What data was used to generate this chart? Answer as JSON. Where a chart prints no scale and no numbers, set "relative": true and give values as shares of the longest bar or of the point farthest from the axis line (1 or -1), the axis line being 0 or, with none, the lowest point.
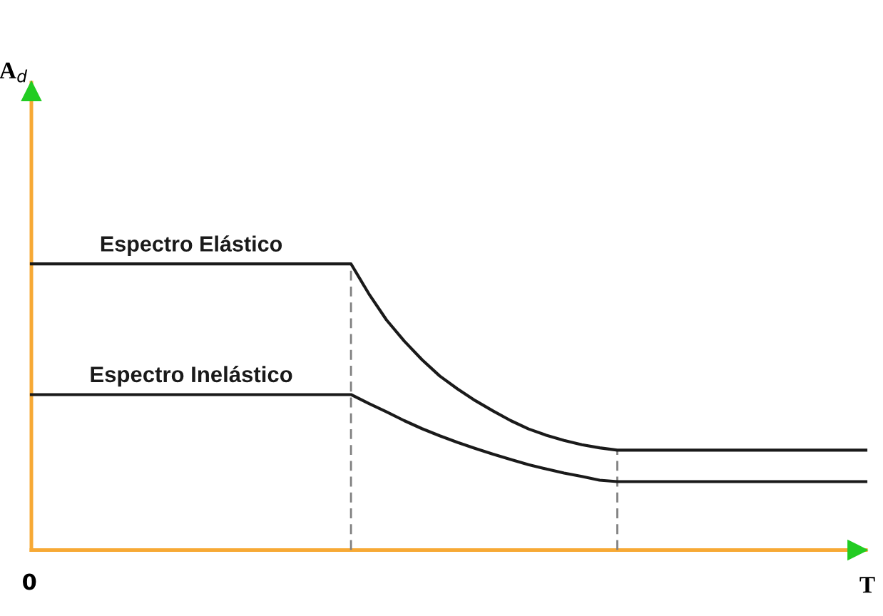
{
  "chart_data": {
    "type": "line",
    "relative": true,
    "xlabel": "T",
    "annotations": [
      "A$_{d}$",
      "0"
    ],
    "marker": "none",
    "line_style": "solid",
    "categories": [
      null,
      null,
      null,
      null,
      null,
      null,
      null,
      null,
      null,
      null,
      null,
      null,
      null,
      null,
      null,
      null,
      null,
      null,
      null,
      null,
      null,
      null,
      null,
      null,
      null,
      null,
      null,
      null,
      null,
      null,
      null,
      null,
      null,
      null,
      null,
      null,
      null,
      null,
      null,
      null,
      null,
      null,
      null,
      null,
      null,
      null,
      null,
      null
    ],
    "series": [
      {
        "name": "Espectro Elástico",
        "color": "#1a1a1a",
        "values": [
          1,
          1,
          1,
          1,
          1,
          1,
          1,
          1,
          1,
          1,
          1,
          1,
          1,
          1,
          1,
          1,
          1,
          1,
          1,
          0.896,
          0.804,
          0.73,
          0.665,
          0.608,
          0.563,
          0.522,
          0.486,
          0.452,
          0.423,
          0.401,
          0.383,
          0.368,
          0.357,
          0.349,
          0.349,
          0.349,
          0.349,
          0.349,
          0.349,
          0.349,
          0.349,
          0.349,
          0.349,
          0.349,
          0.349,
          0.349,
          0.349,
          0.349
        ]
      },
      {
        "name": "Espectro Inelástico",
        "color": "#1a1a1a",
        "values": [
          0.543,
          0.543,
          0.543,
          0.543,
          0.543,
          0.543,
          0.543,
          0.543,
          0.543,
          0.543,
          0.543,
          0.543,
          0.543,
          0.543,
          0.543,
          0.543,
          0.543,
          0.543,
          0.543,
          0.512,
          0.483,
          0.452,
          0.424,
          0.399,
          0.376,
          0.355,
          0.335,
          0.316,
          0.298,
          0.283,
          0.269,
          0.257,
          0.244,
          0.239,
          0.239,
          0.239,
          0.239,
          0.239,
          0.239,
          0.239,
          0.239,
          0.239,
          0.239,
          0.239,
          0.239,
          0.239,
          0.239,
          0.239
        ]
      }
    ]
  }
}
